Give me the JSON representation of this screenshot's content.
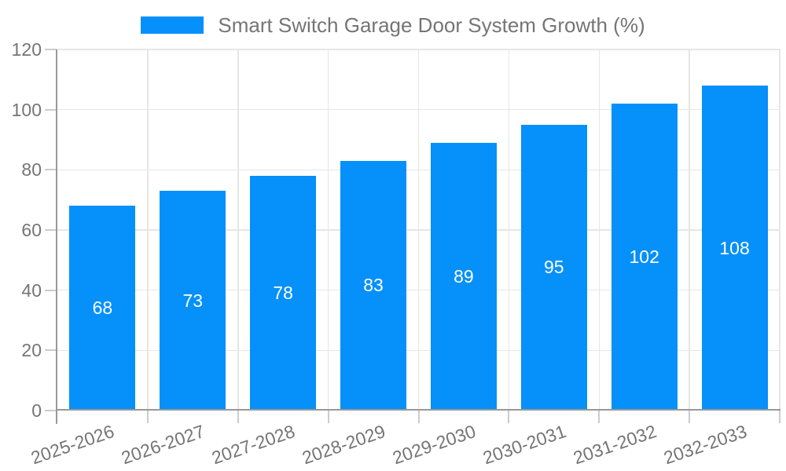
{
  "legend": {
    "items": [
      {
        "label": "Smart Switch Garage Door System Growth (%)",
        "color": "#0590fa"
      }
    ]
  },
  "chart_data": {
    "type": "bar",
    "title": "Smart Switch Garage Door System Growth (%)",
    "categories": [
      "2025-2026",
      "2026-2027",
      "2027-2028",
      "2028-2029",
      "2029-2030",
      "2030-2031",
      "2031-2032",
      "2032-2033"
    ],
    "values": [
      68,
      73,
      78,
      83,
      89,
      95,
      102,
      108
    ],
    "xlabel": "",
    "ylabel": "",
    "ylim": [
      0,
      120
    ],
    "yticks": [
      0,
      20,
      40,
      60,
      80,
      100,
      120
    ],
    "grid": true,
    "legend_position": "top-center",
    "value_labels": "inside-center-white",
    "x_label_rotation_deg": -19,
    "colors": {
      "bar": "#0590fa",
      "value_label": "#ffffff",
      "text": "#757575",
      "grid": "#e6e6e6",
      "axis": "#999999",
      "tick": "#cccccc",
      "background": "#ffffff"
    }
  }
}
